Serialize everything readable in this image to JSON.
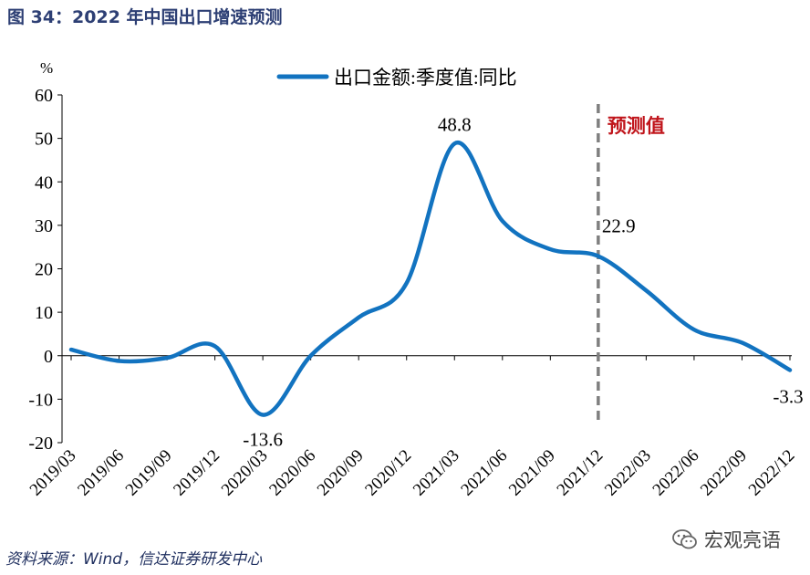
{
  "figure": {
    "title": "图 34：2022 年中国出口增速预测",
    "source": "资料来源：Wind，信达证券研发中心",
    "watermark": "宏观亮语",
    "watermark_icon": "wechat-icon"
  },
  "chart_data": {
    "type": "line",
    "title": "",
    "xlabel": "",
    "ylabel": "%",
    "ylim": [
      -20,
      60
    ],
    "yticks": [
      -20,
      -10,
      0,
      10,
      20,
      30,
      40,
      50,
      60
    ],
    "categories": [
      "2019/03",
      "2019/06",
      "2019/09",
      "2019/12",
      "2020/03",
      "2020/06",
      "2020/09",
      "2020/12",
      "2021/03",
      "2021/06",
      "2021/09",
      "2021/12",
      "2022/03",
      "2022/06",
      "2022/09",
      "2022/12"
    ],
    "series": [
      {
        "name": "出口金额:季度值:同比",
        "color": "#1273c0",
        "values": [
          1.4,
          -1.2,
          -0.5,
          2.2,
          -13.6,
          0.0,
          8.8,
          16.7,
          48.8,
          31.0,
          24.5,
          22.9,
          15.0,
          6.0,
          3.0,
          -3.3
        ]
      }
    ],
    "grid": false,
    "legend_position": "top-center",
    "data_labels": [
      {
        "index": 4,
        "text": "-13.6"
      },
      {
        "index": 8,
        "text": "48.8"
      },
      {
        "index": 11,
        "text": "22.9"
      },
      {
        "index": 15,
        "text": "-3.3"
      }
    ],
    "forecast": {
      "label": "预测值",
      "after_category": "2021/12",
      "line_color": "#7f7f7f",
      "label_color": "#c0151b"
    }
  }
}
